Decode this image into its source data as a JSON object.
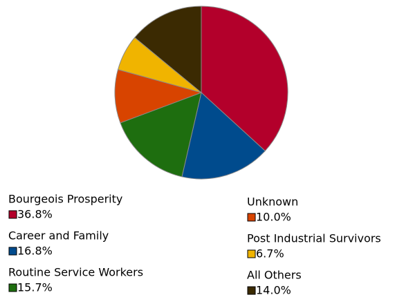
{
  "chart_data": {
    "type": "pie",
    "categories": [
      "Bourgeois Prosperity",
      "Career and Family",
      "Routine Service Workers",
      "Unknown",
      "Post Industrial Survivors",
      "All Others"
    ],
    "values": [
      36.8,
      16.8,
      15.7,
      10.0,
      6.7,
      14.0
    ],
    "value_labels": [
      "36.8%",
      "16.8%",
      "15.7%",
      "10.0%",
      "6.7%",
      "14.0%"
    ],
    "colors": [
      "#b3002b",
      "#004b8d",
      "#1e6e0f",
      "#d84400",
      "#f0b400",
      "#3b2a02"
    ]
  }
}
